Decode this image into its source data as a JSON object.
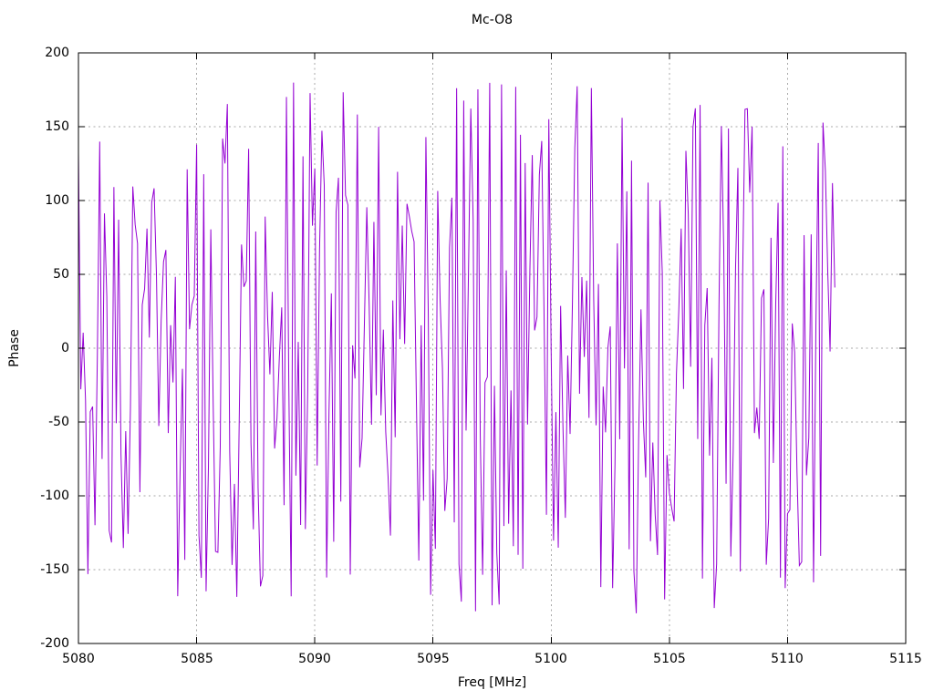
{
  "window": {
    "background": "#ffffff"
  },
  "chart_data": {
    "type": "line",
    "title": "Mc-O8",
    "xlabel": "Freq [MHz]",
    "ylabel": "Phase",
    "xlim": [
      5080,
      5115
    ],
    "ylim": [
      -200,
      200
    ],
    "x_ticks": [
      "5080",
      "5085",
      "5090",
      "5095",
      "5100",
      "5105",
      "5110",
      "5115"
    ],
    "y_ticks": [
      "200",
      "150",
      "100",
      "50",
      "0",
      "-50",
      "-100",
      "-150",
      "-200"
    ],
    "grid": "dashed major ticks, both axes",
    "legend": "none",
    "axis_color": "#000000",
    "grid_color": "#a8a8a8",
    "background": "#ffffff",
    "series": [
      {
        "name": "phase",
        "style": "lines",
        "color": "#9400d3",
        "x_start": 5080.0,
        "x_end": 5112.0,
        "x_step": 0.1,
        "y_wrap_min": -180,
        "y_wrap_max": 180,
        "prng_seed": 9001,
        "description": "Wrapped interferometric phase (degrees), uniformly scattered between -180 and +180 across 5080-5112 MHz; appears as dense near-vertical violet strokes. No data between 5112 and 5115 MHz."
      }
    ]
  }
}
